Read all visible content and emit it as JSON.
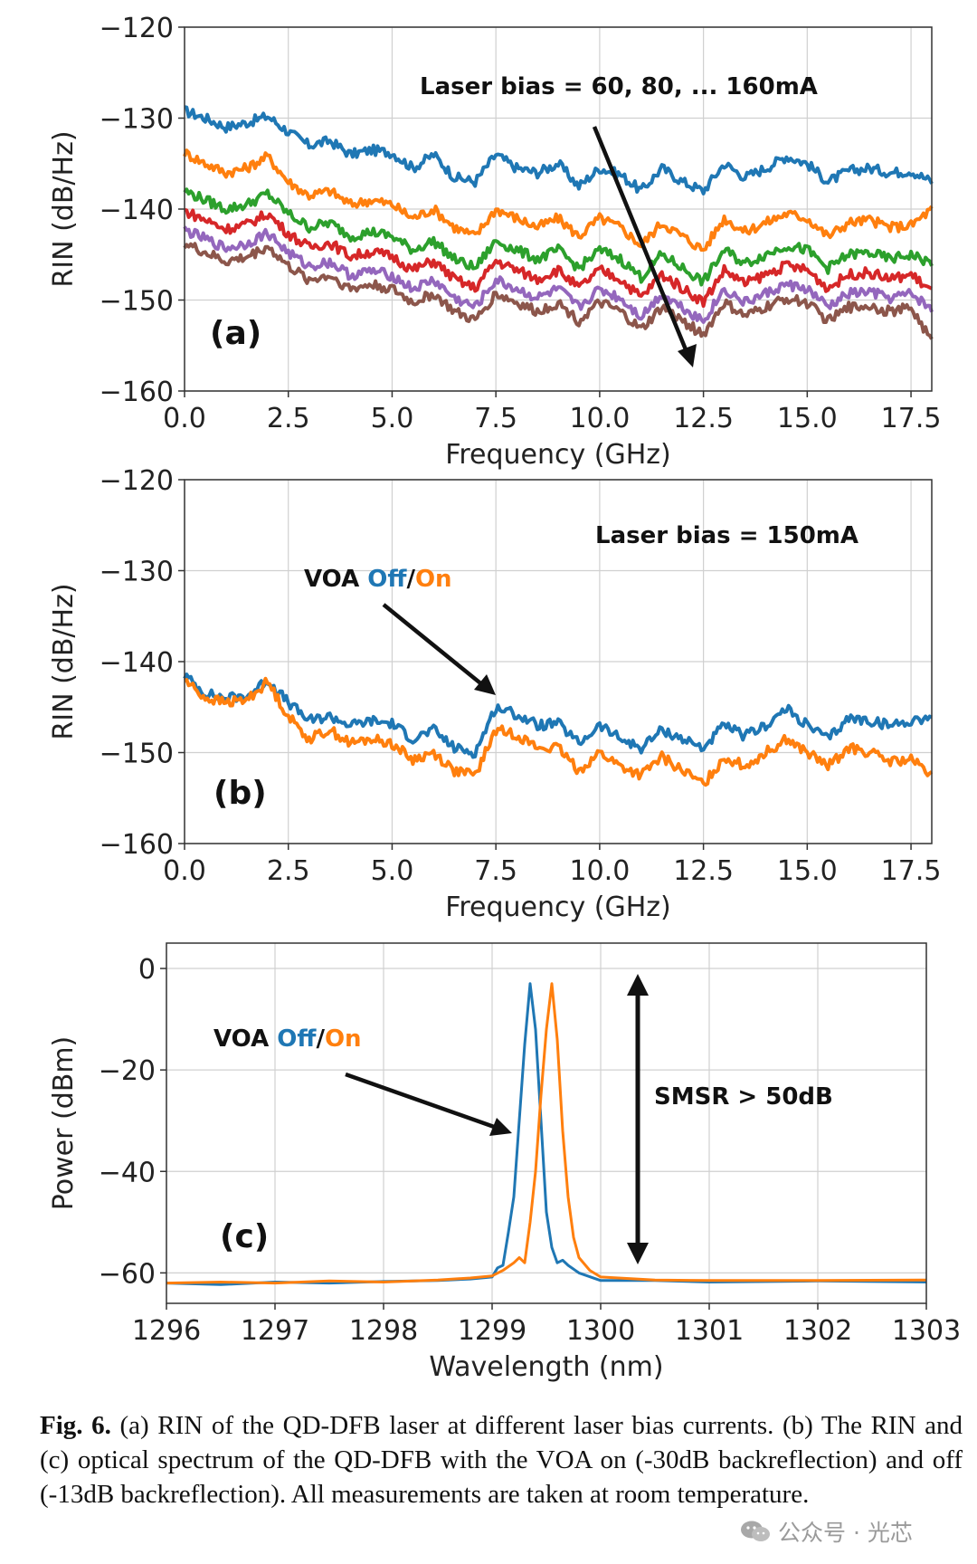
{
  "chart_data": [
    {
      "type": "line",
      "panel_label": "(a)",
      "xlabel": "Frequency (GHz)",
      "ylabel": "RIN (dB/Hz)",
      "xlim": [
        0,
        18
      ],
      "ylim": [
        -160,
        -120
      ],
      "xticks": [
        "0.0",
        "2.5",
        "5.0",
        "7.5",
        "10.0",
        "12.5",
        "15.0",
        "17.5"
      ],
      "yticks": [
        "−120",
        "−130",
        "−140",
        "−150",
        "−160"
      ],
      "grid": true,
      "annotation": "Laser bias = 60, 80, ... 160mA",
      "x": [
        0,
        0.5,
        1,
        1.5,
        2,
        2.5,
        3,
        3.5,
        4,
        4.5,
        5,
        5.5,
        6,
        6.5,
        7,
        7.5,
        8,
        8.5,
        9,
        9.5,
        10,
        10.5,
        11,
        11.5,
        12,
        12.5,
        13,
        13.5,
        14,
        14.5,
        15,
        15.5,
        16,
        16.5,
        17,
        17.5,
        18
      ],
      "series": [
        {
          "color": "#1f77b4",
          "values": [
            -129.2,
            -130,
            -131,
            -130.5,
            -129.8,
            -131.5,
            -133,
            -132.5,
            -134,
            -133.5,
            -133.8,
            -135.5,
            -134,
            -136.5,
            -137,
            -134,
            -135.5,
            -136,
            -135,
            -137.5,
            -135.5,
            -136.2,
            -138,
            -135.5,
            -137,
            -138,
            -135,
            -136.5,
            -135.5,
            -134.2,
            -135,
            -137,
            -135.8,
            -135.5,
            -136,
            -135.8,
            -137
          ]
        },
        {
          "color": "#ff7f0e",
          "values": [
            -133.8,
            -135,
            -136,
            -135.5,
            -134.2,
            -137,
            -138.5,
            -138,
            -139.5,
            -139,
            -139.5,
            -141,
            -140,
            -142,
            -143,
            -140,
            -141,
            -142,
            -141,
            -143,
            -141,
            -142,
            -144,
            -141.5,
            -143,
            -144.5,
            -141,
            -142.5,
            -141.5,
            -140.5,
            -141,
            -143,
            -141.5,
            -141.2,
            -142,
            -141.8,
            -140
          ]
        },
        {
          "color": "#2ca02c",
          "values": [
            -138,
            -139,
            -140,
            -139.5,
            -138.3,
            -140.5,
            -142,
            -141.5,
            -143,
            -142.5,
            -143,
            -144.5,
            -143.5,
            -145.5,
            -146.5,
            -143.5,
            -144.5,
            -145.5,
            -144.5,
            -146.5,
            -144.5,
            -145.5,
            -147.5,
            -145,
            -146.5,
            -148,
            -144.5,
            -146,
            -145,
            -144,
            -144.5,
            -146.5,
            -145,
            -144.8,
            -145.5,
            -145,
            -146
          ]
        },
        {
          "color": "#d62728",
          "values": [
            -140.2,
            -141.2,
            -142.2,
            -141.7,
            -140.5,
            -142.7,
            -144.2,
            -143.7,
            -145.2,
            -144.7,
            -145.2,
            -146.7,
            -145.7,
            -147.7,
            -148.7,
            -145.7,
            -146.7,
            -147.7,
            -146.7,
            -148.7,
            -146.7,
            -147.7,
            -149.7,
            -147.2,
            -148.7,
            -150.2,
            -146.7,
            -148.2,
            -147.2,
            -146.2,
            -146.7,
            -148.7,
            -147.2,
            -147,
            -147.7,
            -147.2,
            -149
          ]
        },
        {
          "color": "#9467bd",
          "values": [
            -142.3,
            -143.3,
            -144.3,
            -143.8,
            -142.6,
            -144.8,
            -146.3,
            -145.8,
            -147.3,
            -146.8,
            -147.3,
            -148.8,
            -147.8,
            -149.8,
            -150.8,
            -147.8,
            -148.8,
            -149.8,
            -148.8,
            -150.8,
            -148.8,
            -149.8,
            -151.8,
            -149.3,
            -150.8,
            -152.3,
            -148.8,
            -150.3,
            -149.3,
            -148.3,
            -148.8,
            -150.8,
            -149.3,
            -149.1,
            -149.8,
            -149.3,
            -151
          ]
        },
        {
          "color": "#8c564b",
          "values": [
            -143.8,
            -144.8,
            -145.8,
            -145.3,
            -144.1,
            -146.3,
            -147.8,
            -147.3,
            -148.8,
            -148.3,
            -148.8,
            -150.3,
            -149.3,
            -151.3,
            -152.3,
            -149.3,
            -150.3,
            -151.3,
            -150.3,
            -152.3,
            -150.3,
            -151.3,
            -153.3,
            -150.8,
            -152.3,
            -153.8,
            -150.3,
            -151.8,
            -150.8,
            -149.8,
            -150.3,
            -152.3,
            -150.8,
            -150.6,
            -151.3,
            -150.8,
            -154.5
          ]
        }
      ]
    },
    {
      "type": "line",
      "panel_label": "(b)",
      "xlabel": "Frequency (GHz)",
      "ylabel": "RIN (dB/Hz)",
      "xlim": [
        0,
        18
      ],
      "ylim": [
        -160,
        -120
      ],
      "xticks": [
        "0.0",
        "2.5",
        "5.0",
        "7.5",
        "10.0",
        "12.5",
        "15.0",
        "17.5"
      ],
      "yticks": [
        "−120",
        "−130",
        "−140",
        "−150",
        "−160"
      ],
      "grid": true,
      "annotation": "Laser bias = 150mA",
      "x": [
        0,
        0.5,
        1,
        1.5,
        2,
        2.5,
        3,
        3.5,
        4,
        4.5,
        5,
        5.5,
        6,
        6.5,
        7,
        7.5,
        8,
        8.5,
        9,
        9.5,
        10,
        10.5,
        11,
        11.5,
        12,
        12.5,
        13,
        13.5,
        14,
        14.5,
        15,
        15.5,
        16,
        16.5,
        17,
        17.5,
        18
      ],
      "series": [
        {
          "color": "#1f77b4",
          "values": [
            -141.5,
            -143.5,
            -144,
            -143.8,
            -142,
            -144.5,
            -146.5,
            -146,
            -147,
            -146.5,
            -146.8,
            -148.5,
            -147.5,
            -149.5,
            -150,
            -145,
            -145.8,
            -147,
            -146.8,
            -149,
            -147,
            -148.5,
            -149.5,
            -147.5,
            -148.5,
            -149.5,
            -147,
            -148.2,
            -147,
            -145.2,
            -147,
            -148.5,
            -146.2,
            -146.5,
            -147,
            -146.5,
            -146
          ]
        },
        {
          "color": "#ff7f0e",
          "values": [
            -142,
            -144,
            -144.5,
            -144.2,
            -142.2,
            -146,
            -148.5,
            -147.5,
            -149,
            -148.5,
            -149,
            -150.8,
            -150,
            -152,
            -152.5,
            -147.5,
            -148,
            -149.5,
            -149.5,
            -152,
            -150,
            -151.5,
            -152.5,
            -150.5,
            -152,
            -153.5,
            -150.5,
            -151.5,
            -150,
            -148.5,
            -150,
            -151.5,
            -149.5,
            -150,
            -151,
            -150.8,
            -152.5
          ]
        }
      ]
    },
    {
      "type": "line",
      "panel_label": "(c)",
      "xlabel": "Wavelength (nm)",
      "ylabel": "Power (dBm)",
      "xlim": [
        1296,
        1303
      ],
      "ylim": [
        -66,
        5
      ],
      "xticks": [
        "1296",
        "1297",
        "1298",
        "1299",
        "1300",
        "1301",
        "1302",
        "1303"
      ],
      "yticks": [
        "0",
        "−20",
        "−40",
        "−60"
      ],
      "grid": true,
      "annotation_left": "VOA",
      "annotation_off": "Off",
      "annotation_on": "On",
      "annotation_right": "SMSR > 50dB",
      "series": [
        {
          "color": "#1f77b4",
          "x": [
            1296,
            1296.5,
            1297,
            1297.5,
            1298,
            1298.5,
            1298.8,
            1299,
            1299.05,
            1299.1,
            1299.15,
            1299.2,
            1299.25,
            1299.3,
            1299.35,
            1299.4,
            1299.45,
            1299.5,
            1299.55,
            1299.6,
            1299.65,
            1299.7,
            1299.8,
            1300,
            1300.5,
            1301,
            1302,
            1303
          ],
          "values": [
            -62,
            -62.3,
            -61.8,
            -62,
            -61.7,
            -61.5,
            -61.2,
            -60.8,
            -59,
            -58.5,
            -52,
            -45,
            -30,
            -15,
            -3,
            -12,
            -30,
            -48,
            -55,
            -58,
            -57.5,
            -58.5,
            -60,
            -61.5,
            -61.5,
            -61.8,
            -61.6,
            -61.8
          ]
        },
        {
          "color": "#ff7f0e",
          "x": [
            1296,
            1296.5,
            1297,
            1297.5,
            1298,
            1298.5,
            1298.8,
            1299,
            1299.1,
            1299.2,
            1299.25,
            1299.3,
            1299.35,
            1299.4,
            1299.45,
            1299.5,
            1299.55,
            1299.6,
            1299.65,
            1299.7,
            1299.75,
            1299.8,
            1299.9,
            1300,
            1300.5,
            1301,
            1302,
            1303
          ],
          "values": [
            -62,
            -61.8,
            -62,
            -61.6,
            -61.8,
            -61.4,
            -61,
            -60.6,
            -59.5,
            -58,
            -57,
            -58,
            -50,
            -40,
            -25,
            -12,
            -3,
            -14,
            -32,
            -45,
            -53,
            -57,
            -59.5,
            -60.8,
            -61.4,
            -61.5,
            -61.5,
            -61.4
          ]
        }
      ]
    }
  ],
  "caption": {
    "fig_label": "Fig. 6.",
    "text": " (a) RIN of the QD-DFB laser at different laser bias currents. (b) The RIN and (c) optical spectrum of the QD-DFB with the VOA on (-30dB backreflection) and off (-13dB backreflection). All measurements are taken at room temperature."
  },
  "watermark": {
    "icon": "wechat-icon",
    "text": "公众号 · 光芯"
  }
}
